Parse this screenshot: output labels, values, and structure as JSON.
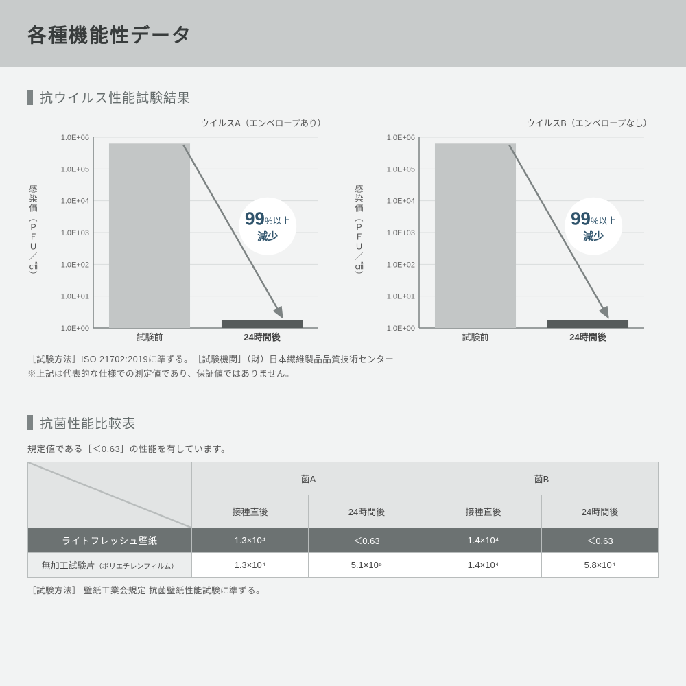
{
  "header": {
    "title": "各種機能性データ"
  },
  "section1": {
    "title": "抗ウイルス性能試験結果",
    "yaxis_label": "感染価（ＰＦＵ／㎠）",
    "ytick_labels": [
      "1.0E+06",
      "1.0E+05",
      "1.0E+04",
      "1.0E+03",
      "1.0E+02",
      "1.0E+01",
      "1.0E+00"
    ],
    "x_labels": [
      "試験前",
      "24時間後"
    ],
    "ylim_exp": [
      0,
      6
    ],
    "type": "bar-log",
    "bar_exp_values": [
      5.8,
      0.25
    ],
    "bar_colors": [
      "#c3c6c6",
      "#565b5b"
    ],
    "axis_color": "#7d8383",
    "grid_color": "#d9dcdc",
    "tick_font_size": 11,
    "xlabel_font_size": 13,
    "badge": {
      "big": "99",
      "big_unit": "%以上",
      "line2": "減少",
      "circle_fill": "#ffffff",
      "text_color": "#2f536b",
      "big_fontsize": 26,
      "small_fontsize": 13
    },
    "arrow_color": "#7d8383",
    "chartA": {
      "label": "ウイルスA（エンベロープあり）"
    },
    "chartB": {
      "label": "ウイルスB（エンベロープなし）"
    },
    "note1": "［試験方法］ISO 21702:2019に準ずる。　［試験機関］（財）日本繊維製品品質技術センター",
    "note2": "※上記は代表的な仕様での測定値であり、保証値ではありません。"
  },
  "section2": {
    "title": "抗菌性能比較表",
    "subnote": "規定値である［＜0.63］の性能を有しています。",
    "col_group_headers": [
      "菌A",
      "菌B"
    ],
    "sub_headers": [
      "接種直後",
      "24時間後",
      "接種直後",
      "24時間後"
    ],
    "row1": {
      "label": "ライトフレッシュ壁紙",
      "cells": [
        "1.3×10⁴",
        "＜0.63",
        "1.4×10⁴",
        "＜0.63"
      ]
    },
    "row2": {
      "label_main": "無加工試験片",
      "label_paren": "（ポリエチレンフィルム）",
      "cells": [
        "1.3×10⁴",
        "5.1×10⁵",
        "1.4×10⁴",
        "5.8×10⁴"
      ]
    },
    "footnote": "［試験方法］ 壁紙工業会規定  抗菌壁紙性能試験に準ずる。"
  },
  "style": {
    "page_bg": "#f2f3f3",
    "header_bg": "#c8cbcb",
    "title_bar_color": "#7e8485"
  }
}
